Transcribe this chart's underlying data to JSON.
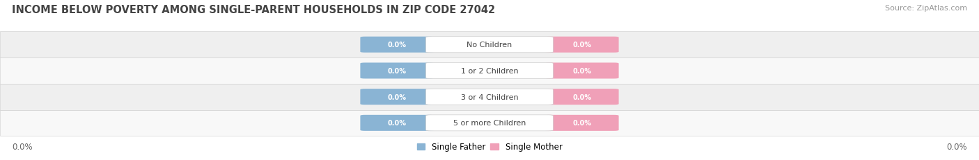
{
  "title": "INCOME BELOW POVERTY AMONG SINGLE-PARENT HOUSEHOLDS IN ZIP CODE 27042",
  "source_text": "Source: ZipAtlas.com",
  "categories": [
    "No Children",
    "1 or 2 Children",
    "3 or 4 Children",
    "5 or more Children"
  ],
  "single_father_values": [
    0.0,
    0.0,
    0.0,
    0.0
  ],
  "single_mother_values": [
    0.0,
    0.0,
    0.0,
    0.0
  ],
  "father_color": "#8ab4d4",
  "mother_color": "#f0a0b8",
  "label_color_father": "#ffffff",
  "label_color_mother": "#ffffff",
  "category_label_color": "#444444",
  "axis_label_left": "0.0%",
  "axis_label_right": "0.0%",
  "legend_father": "Single Father",
  "legend_mother": "Single Mother",
  "title_fontsize": 10.5,
  "source_fontsize": 8,
  "bg_color": "#ffffff",
  "row_bg_odd": "#efefef",
  "row_bg_even": "#f8f8f8",
  "value_label_fontsize": 7,
  "cat_label_fontsize": 8
}
